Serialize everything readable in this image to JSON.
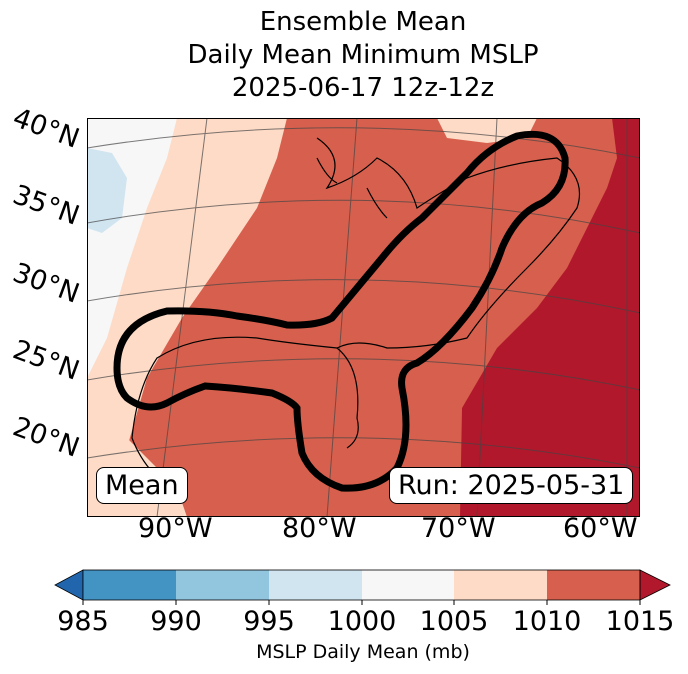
{
  "title": {
    "line1": "Ensemble Mean",
    "line2": "Daily Mean Minimum MSLP",
    "line3": "2025-06-17 12z-12z"
  },
  "map": {
    "lat_labels": [
      "40°N",
      "35°N",
      "30°N",
      "25°N",
      "20°N"
    ],
    "lon_labels": [
      "90°W",
      "80°W",
      "70°W",
      "60°W"
    ],
    "mean_label": "Mean",
    "run_label": "Run: 2025-05-31"
  },
  "colorbar": {
    "ticks": [
      "985",
      "990",
      "995",
      "1000",
      "1005",
      "1010",
      "1015"
    ],
    "label": "MSLP Daily Mean (mb)",
    "colors": [
      "#2166ac",
      "#4393c3",
      "#92c5de",
      "#d1e5f0",
      "#f7f7f7",
      "#fddbc7",
      "#d6604d",
      "#b2182b"
    ]
  }
}
